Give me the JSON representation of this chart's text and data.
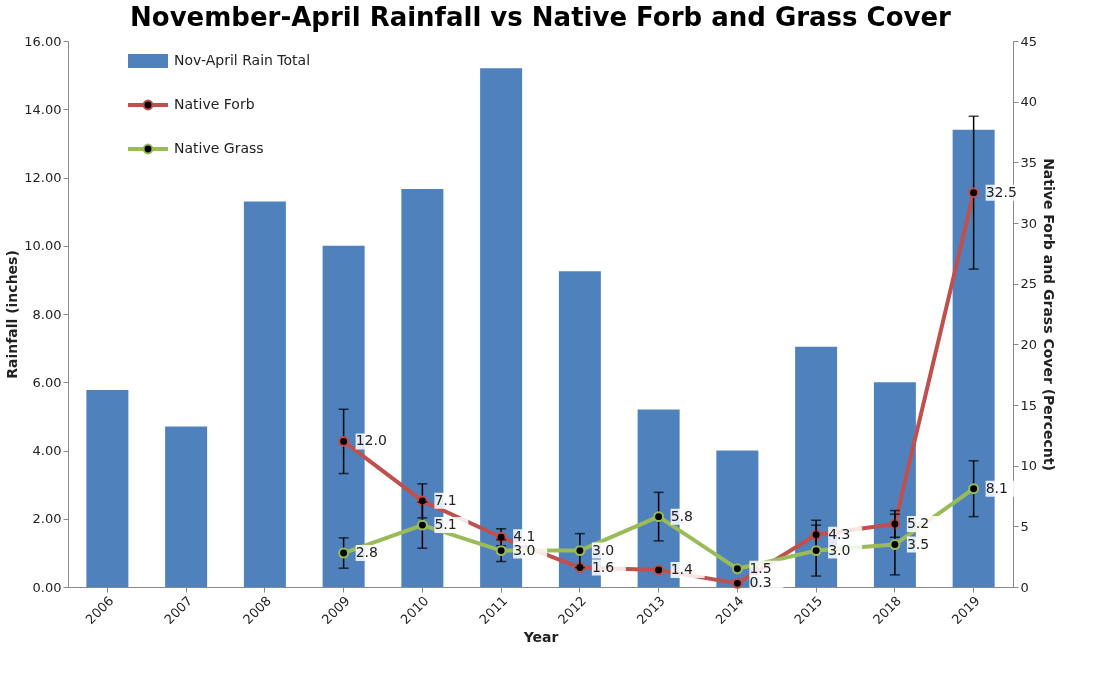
{
  "chart_data": {
    "type": "bar",
    "title": "November-April Rainfall vs Native Forb and Grass Cover",
    "xlabel": "Year",
    "ylabel": "Rainfall (inches)",
    "y2label": "Native Forb and Grass Cover (Percecnt)",
    "categories": [
      "2006",
      "2007",
      "2008",
      "2009",
      "2010",
      "2011",
      "2012",
      "2013",
      "2014",
      "2015",
      "2018",
      "2019"
    ],
    "series": [
      {
        "name": "Nov-April Rain Total",
        "color": "#4f81bd",
        "values": [
          5.77,
          4.7,
          11.3,
          10.0,
          11.66,
          15.2,
          9.25,
          5.2,
          4.0,
          7.04,
          6.0,
          13.4
        ]
      },
      {
        "name": "Native Forb",
        "type": "line",
        "axis": "y2",
        "color": "#c0504d",
        "values": [
          null,
          null,
          null,
          12.0,
          7.1,
          4.1,
          1.6,
          1.4,
          0.3,
          4.3,
          5.2,
          32.5
        ],
        "value_labels": [
          null,
          null,
          null,
          "12.0",
          "7.1",
          "4.1",
          "1.6",
          "1.4",
          "0.3",
          "4.3",
          "5.2",
          "32.5"
        ],
        "errors": [
          null,
          null,
          null,
          2.65,
          1.4,
          0.7,
          null,
          null,
          null,
          1.2,
          1.1,
          6.3
        ]
      },
      {
        "name": "Native Grass",
        "type": "line",
        "axis": "y2",
        "color": "#9bbb59",
        "values": [
          null,
          null,
          null,
          2.8,
          5.1,
          3.0,
          3.0,
          5.8,
          1.5,
          3.0,
          3.5,
          8.1
        ],
        "value_labels": [
          null,
          null,
          null,
          "2.8",
          "5.1",
          "3.0",
          "3.0",
          "5.8",
          "1.5",
          "3.0",
          "3.5",
          "8.1"
        ],
        "errors": [
          null,
          null,
          null,
          1.25,
          1.9,
          0.9,
          1.4,
          2.0,
          null,
          2.1,
          2.5,
          2.3
        ]
      }
    ],
    "ylim": [
      0,
      16
    ],
    "yticks": [
      {
        "value": 0,
        "label": "0.00"
      },
      {
        "value": 2,
        "label": "2.00"
      },
      {
        "value": 4,
        "label": "4.00"
      },
      {
        "value": 6,
        "label": "6.00"
      },
      {
        "value": 8,
        "label": "8.00"
      },
      {
        "value": 10,
        "label": "10.00"
      },
      {
        "value": 12,
        "label": "12.00"
      },
      {
        "value": 14,
        "label": "14.00"
      },
      {
        "value": 16,
        "label": "16.00"
      }
    ],
    "y2lim": [
      0,
      45
    ],
    "y2ticks": [
      0,
      5,
      10,
      15,
      20,
      25,
      30,
      35,
      40,
      45
    ],
    "grid": false,
    "legend": "top left",
    "marker": "circle",
    "line_style": "solid"
  }
}
